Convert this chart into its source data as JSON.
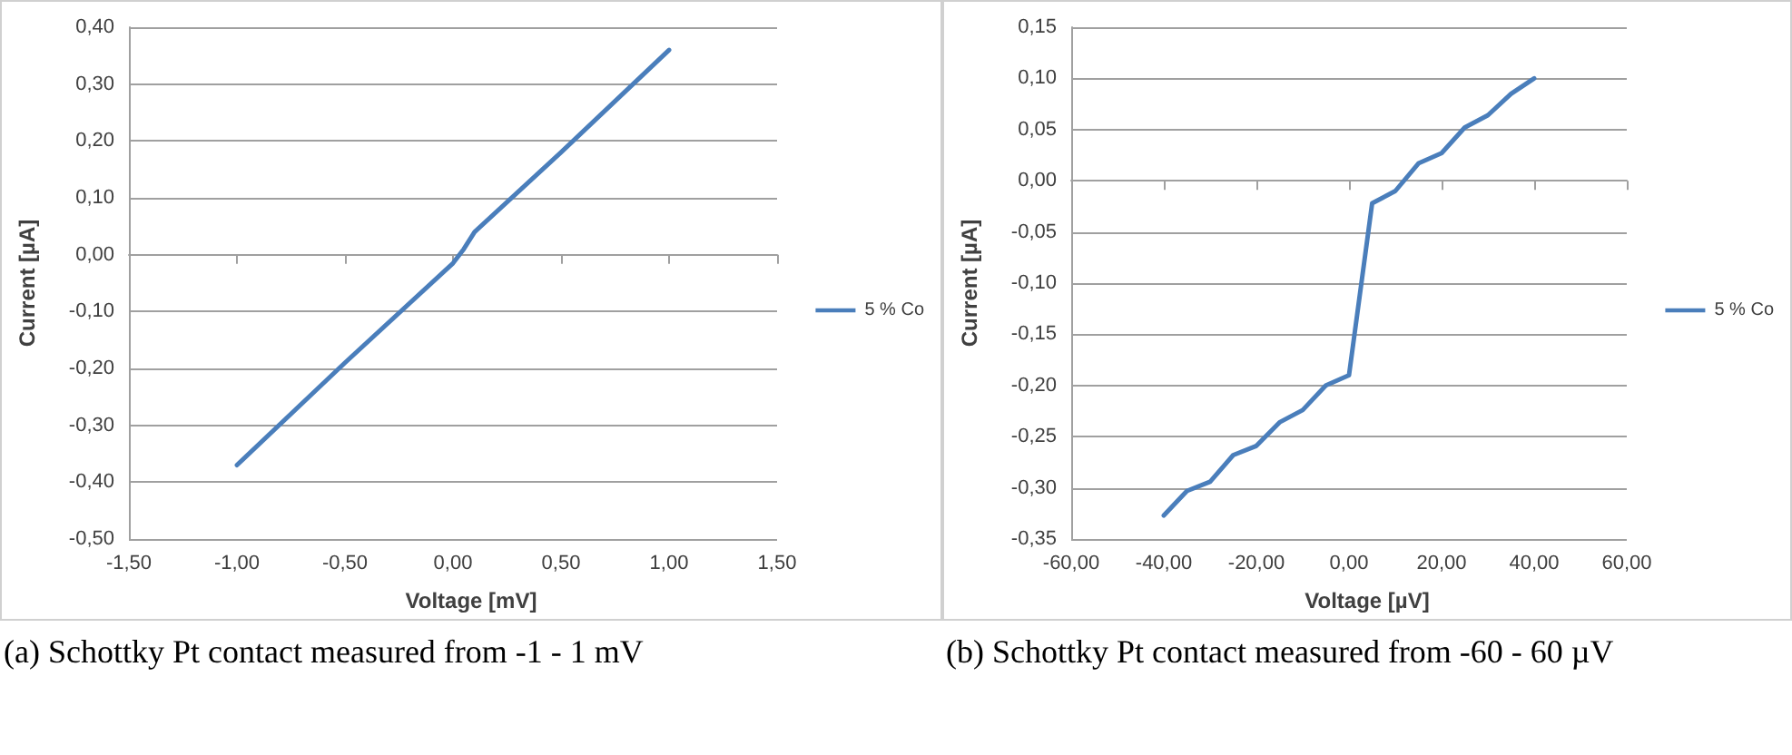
{
  "chart_data": [
    {
      "type": "line",
      "xlabel": "Voltage [mV]",
      "ylabel": "Current [µA]",
      "legend": "right",
      "grid": "y",
      "marker": "none",
      "line_style": "solid",
      "xlim": [
        -1.5,
        1.5
      ],
      "xticks": [
        {
          "value": -1.5,
          "label": "-1,50"
        },
        {
          "value": -1,
          "label": "-1,00"
        },
        {
          "value": -0.5,
          "label": "-0,50"
        },
        {
          "value": 0,
          "label": "0,00"
        },
        {
          "value": 0.5,
          "label": "0,50"
        },
        {
          "value": 1,
          "label": "1,00"
        },
        {
          "value": 1.5,
          "label": "1,50"
        }
      ],
      "ylim": [
        -0.5,
        0.4
      ],
      "yticks": [
        {
          "value": -0.5,
          "label": "-0,50"
        },
        {
          "value": -0.4,
          "label": "-0,40"
        },
        {
          "value": -0.3,
          "label": "-0,30"
        },
        {
          "value": -0.2,
          "label": "-0,20"
        },
        {
          "value": -0.1,
          "label": "-0,10"
        },
        {
          "value": 0,
          "label": "0,00"
        },
        {
          "value": 0.1,
          "label": "0,10"
        },
        {
          "value": 0.2,
          "label": "0,20"
        },
        {
          "value": 0.3,
          "label": "0,30"
        },
        {
          "value": 0.4,
          "label": "0,40"
        }
      ],
      "series": [
        {
          "name": "5 % Co",
          "color": "#4a7ebb",
          "x": [
            -1,
            -0.5,
            0,
            0.05,
            0.1,
            0.5,
            1
          ],
          "values": [
            -0.37,
            -0.19,
            -0.015,
            0.01,
            0.04,
            0.18,
            0.36
          ]
        }
      ],
      "annotations": [
        "(a) Schottky Pt contact measured from -1 - 1 mV"
      ]
    },
    {
      "type": "line",
      "xlabel": "Voltage [µV]",
      "ylabel": "Current [µA]",
      "legend": "right",
      "grid": "y",
      "marker": "none",
      "line_style": "solid",
      "xlim": [
        -60,
        60
      ],
      "xticks": [
        {
          "value": -60,
          "label": "-60,00"
        },
        {
          "value": -40,
          "label": "-40,00"
        },
        {
          "value": -20,
          "label": "-20,00"
        },
        {
          "value": 0,
          "label": "0,00"
        },
        {
          "value": 20,
          "label": "20,00"
        },
        {
          "value": 40,
          "label": "40,00"
        },
        {
          "value": 60,
          "label": "60,00"
        }
      ],
      "ylim": [
        -0.35,
        0.15
      ],
      "yticks": [
        {
          "value": -0.35,
          "label": "-0,35"
        },
        {
          "value": -0.3,
          "label": "-0,30"
        },
        {
          "value": -0.25,
          "label": "-0,25"
        },
        {
          "value": -0.2,
          "label": "-0,20"
        },
        {
          "value": -0.15,
          "label": "-0,15"
        },
        {
          "value": -0.1,
          "label": "-0,10"
        },
        {
          "value": -0.05,
          "label": "-0,05"
        },
        {
          "value": 0,
          "label": "0,00"
        },
        {
          "value": 0.05,
          "label": "0,05"
        },
        {
          "value": 0.1,
          "label": "0,10"
        },
        {
          "value": 0.15,
          "label": "0,15"
        }
      ],
      "series": [
        {
          "name": "5 % Co",
          "color": "#4a7ebb",
          "x": [
            -40,
            -35,
            -30,
            -25,
            -20,
            -15,
            -10,
            -5,
            0,
            5,
            10,
            15,
            20,
            25,
            30,
            35,
            40
          ],
          "values": [
            -0.327,
            -0.303,
            -0.294,
            -0.268,
            -0.259,
            -0.236,
            -0.224,
            -0.2,
            -0.19,
            -0.022,
            -0.01,
            0.017,
            0.027,
            0.052,
            0.064,
            0.085,
            0.1
          ]
        }
      ],
      "annotations": [
        "(b) Schottky Pt contact measured from -60 - 60 µV"
      ]
    }
  ]
}
